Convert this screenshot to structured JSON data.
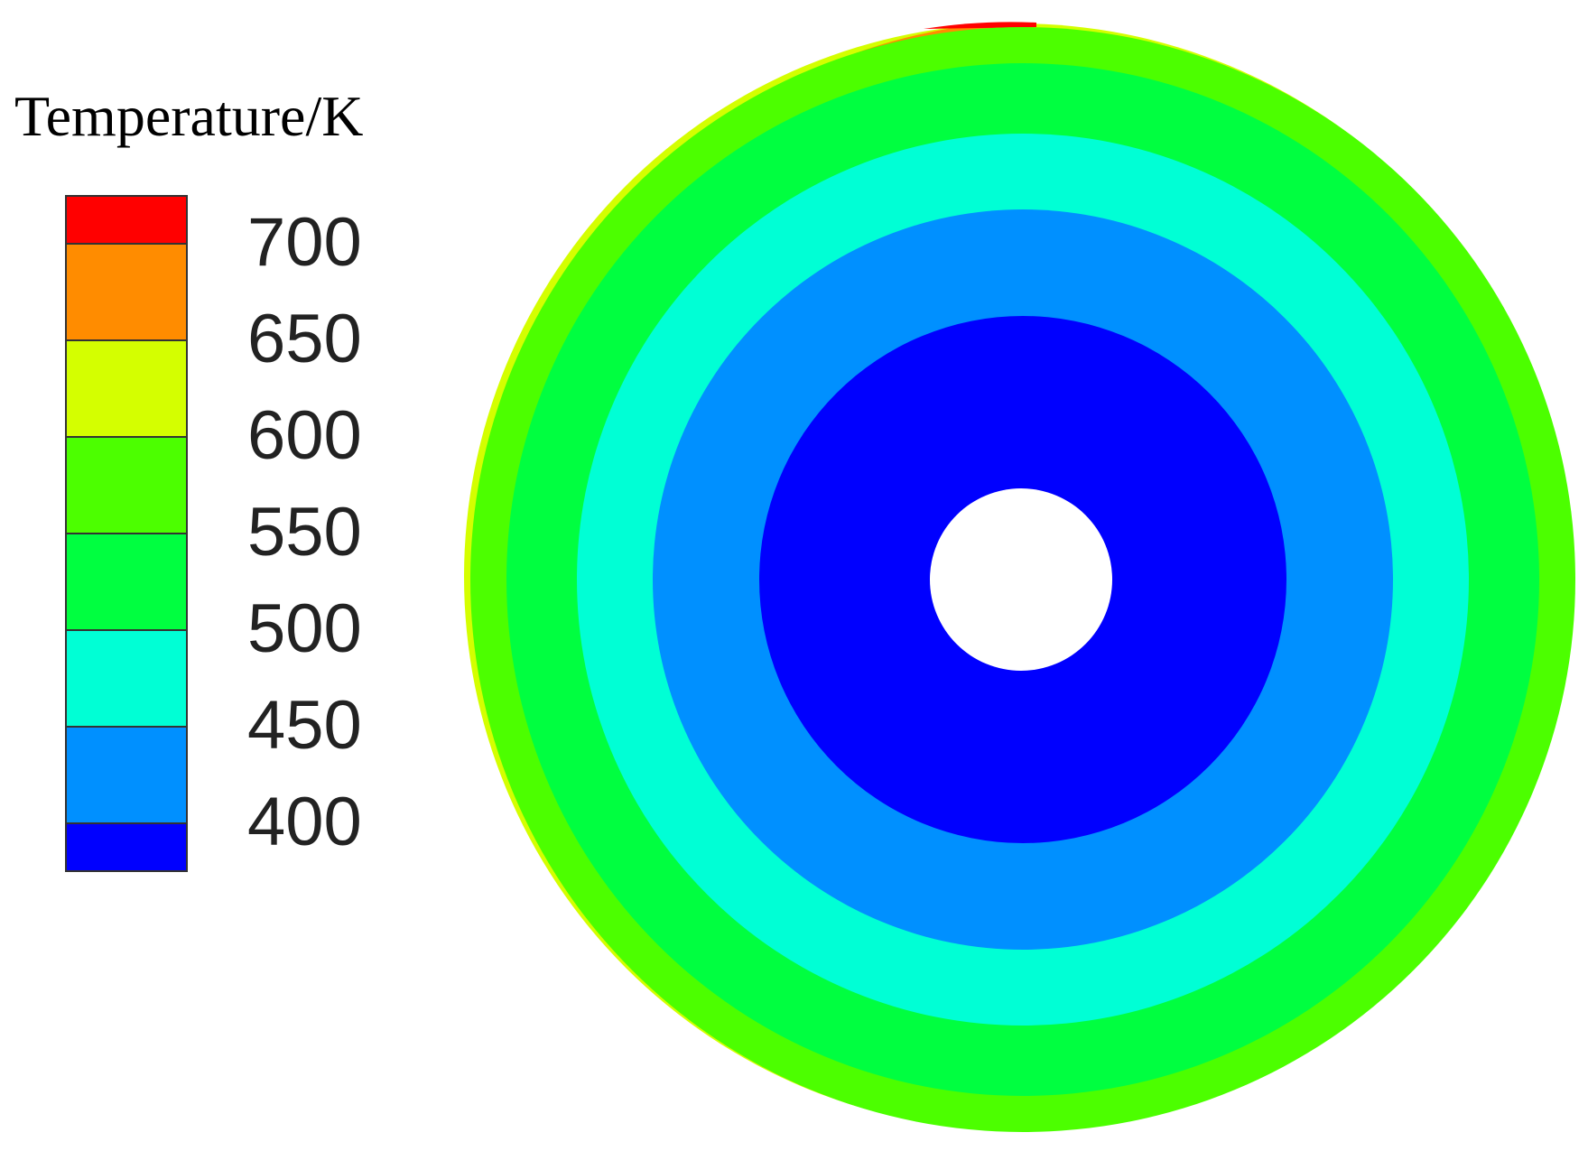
{
  "chart_data": {
    "type": "contour",
    "title": "Temperature/K",
    "levels": [
      400,
      450,
      500,
      550,
      600,
      650,
      700
    ],
    "colors": [
      "#0000ff",
      "#0090ff",
      "#00ffd5",
      "#00ff40",
      "#4cff00",
      "#d4ff00",
      "#ff8c00",
      "#ff0000"
    ]
  }
}
